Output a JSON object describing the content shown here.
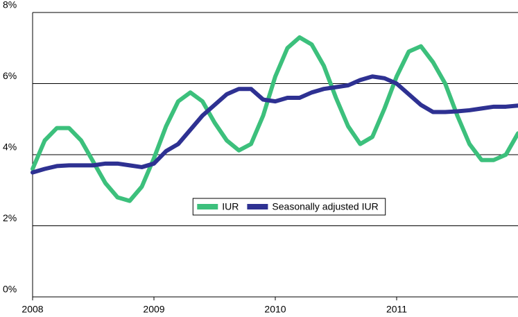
{
  "chart_data": {
    "type": "line",
    "x": [
      2008.0,
      2008.1,
      2008.2,
      2008.3,
      2008.4,
      2008.5,
      2008.6,
      2008.7,
      2008.8,
      2008.9,
      2009.0,
      2009.1,
      2009.2,
      2009.3,
      2009.4,
      2009.5,
      2009.6,
      2009.7,
      2009.8,
      2009.9,
      2010.0,
      2010.1,
      2010.2,
      2010.3,
      2010.4,
      2010.5,
      2010.6,
      2010.7,
      2010.8,
      2010.9,
      2011.0,
      2011.1,
      2011.2,
      2011.3,
      2011.4,
      2011.5,
      2011.6,
      2011.7,
      2011.8,
      2011.9,
      2012.0
    ],
    "series": [
      {
        "name": "IUR",
        "color": "#3cc07c",
        "values": [
          3.6,
          4.4,
          4.75,
          4.75,
          4.4,
          3.8,
          3.2,
          2.8,
          2.7,
          3.1,
          3.9,
          4.8,
          5.5,
          5.75,
          5.5,
          4.9,
          4.4,
          4.12,
          4.3,
          5.1,
          6.2,
          7.0,
          7.3,
          7.1,
          6.5,
          5.6,
          4.8,
          4.3,
          4.5,
          5.3,
          6.2,
          6.9,
          7.05,
          6.6,
          6.0,
          5.1,
          4.3,
          3.85,
          3.85,
          4.0,
          4.6
        ]
      },
      {
        "name": "Seasonally adjusted IUR",
        "color": "#2e3192",
        "values": [
          3.5,
          3.6,
          3.68,
          3.7,
          3.7,
          3.7,
          3.75,
          3.75,
          3.7,
          3.65,
          3.75,
          4.1,
          4.3,
          4.7,
          5.1,
          5.4,
          5.7,
          5.85,
          5.85,
          5.55,
          5.5,
          5.6,
          5.6,
          5.75,
          5.85,
          5.9,
          5.95,
          6.1,
          6.2,
          6.15,
          6.0,
          5.7,
          5.4,
          5.2,
          5.2,
          5.22,
          5.25,
          5.3,
          5.35,
          5.35,
          5.38
        ]
      }
    ],
    "xlim": [
      2008,
      2012
    ],
    "xticks": [
      2008,
      2009,
      2010,
      2011
    ],
    "ylim": [
      0,
      8
    ],
    "yticks": [
      {
        "value": 0,
        "label": "0%"
      },
      {
        "value": 2,
        "label": "2%"
      },
      {
        "value": 4,
        "label": "4%"
      },
      {
        "value": 6,
        "label": "6%"
      },
      {
        "value": 8,
        "label": "8%"
      }
    ],
    "grid": true,
    "legend": "center"
  }
}
